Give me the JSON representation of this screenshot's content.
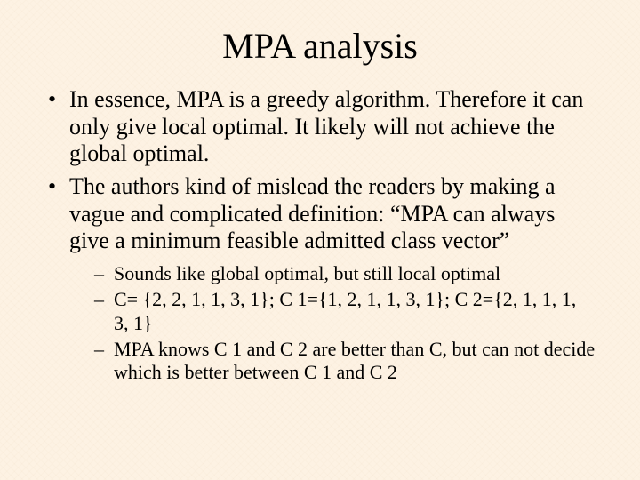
{
  "slide": {
    "background_color": "#fdf2e3",
    "text_color": "#000000",
    "title": "MPA analysis",
    "title_fontsize": 40,
    "body_fontsize": 26,
    "sub_fontsize": 22,
    "font_family": "Times New Roman",
    "bullets": [
      {
        "text": "In essence, MPA is a greedy algorithm. Therefore it can only give local optimal. It likely will not achieve the global optimal."
      },
      {
        "text": "The authors kind of mislead the readers by making a vague and complicated definition: “MPA can always give a minimum feasible admitted class vector”",
        "sub": [
          "Sounds like global optimal, but still local optimal",
          "C= {2, 2, 1, 1, 3, 1};  C 1={1, 2, 1, 1, 3, 1};  C 2={2, 1, 1, 1, 3, 1}",
          "MPA knows C 1 and C 2 are better than C, but can not decide which is better between C 1 and C 2"
        ]
      }
    ]
  }
}
